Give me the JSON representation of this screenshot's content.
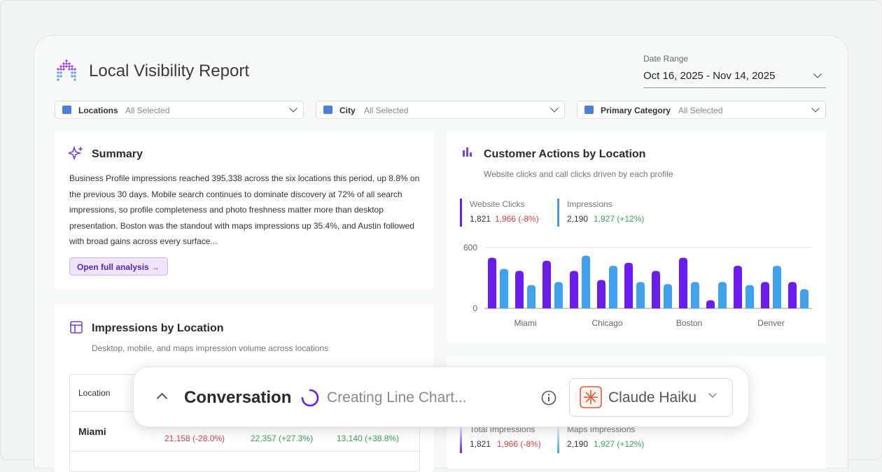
{
  "header": {
    "title": "Local Visibility Report",
    "date_range_label": "Date Range",
    "date_range": "Oct 16, 2025 - Nov 14, 2025"
  },
  "filters": [
    {
      "label": "Locations",
      "value": "All Selected"
    },
    {
      "label": "City",
      "value": "All Selected"
    },
    {
      "label": "Primary Category",
      "value": "All Selected"
    }
  ],
  "summary": {
    "title": "Summary",
    "text": "Business Profile impressions reached 395,338 across the six locations this period, up 8.8% on the previous 30 days. Mobile search continues to dominate discovery at 72% of all search impressions, so profile completeness and photo freshness matter more than desktop presentation. Boston was the standout with maps impressions up 35.4%, and Austin followed with broad gains across every surface...",
    "button": "Open full analysis"
  },
  "impressions": {
    "title": "Impressions by Location",
    "subtitle": "Desktop, mobile, and maps impression volume across locations",
    "table": {
      "header": [
        "Location"
      ],
      "rows": [
        [
          "Miami",
          "21,158 (-28.0%)",
          "22,357 (+27.3%)",
          "13,140 (+38.8%)"
        ]
      ]
    }
  },
  "chart_data": {
    "type": "bar",
    "title": "Customer Actions by Location",
    "subtitle": "Website clicks and call clicks driven by each profile",
    "kpis": [
      {
        "value": "1,821",
        "previous": "1,966 (-8%)"
      },
      {
        "value": "2,190",
        "previous": "1,927 (+12%)"
      }
    ],
    "categories": [
      null,
      "Miami",
      null,
      null,
      "Chicago",
      null,
      null,
      "Boston",
      null,
      null,
      "Denver",
      null
    ],
    "series": [
      {
        "name": "Website Clicks",
        "color": "#6a1cf2",
        "values": [
          500,
          370,
          470,
          370,
          280,
          450,
          370,
          500,
          80,
          420,
          260,
          260
        ]
      },
      {
        "name": "Impressions",
        "color": "#3fa2ef",
        "values": [
          390,
          230,
          260,
          520,
          420,
          260,
          240,
          260,
          260,
          230,
          420,
          190
        ]
      }
    ],
    "ylim": [
      0,
      600
    ],
    "yticks": [
      0,
      600
    ],
    "grid": true
  },
  "bottom_card": {
    "kpis": [
      {
        "label": "Total Impressions",
        "value": "1,821",
        "previous": "1,966 (-8%)"
      },
      {
        "label": "Maps Impressions",
        "value": "2,190",
        "previous": "1,927 (+12%)"
      }
    ]
  },
  "conversation": {
    "title": "Conversation",
    "status": "Creating Line Chart...",
    "model": "Claude Haiku"
  }
}
